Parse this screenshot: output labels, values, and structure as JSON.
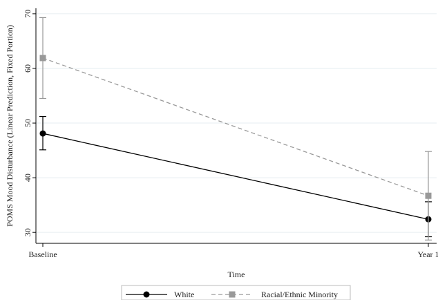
{
  "chart_data": {
    "type": "line",
    "xlabel": "Time",
    "ylabel": "POMS Mood Disturbance (Linear Prediction, Fixed Portion)",
    "categories": [
      "Baseline",
      "Year 1"
    ],
    "ylim": [
      28,
      71
    ],
    "yticks": [
      30,
      40,
      50,
      60,
      70
    ],
    "grid": true,
    "legend_position": "bottom",
    "series": [
      {
        "name": "White",
        "values": [
          48.1,
          32.4
        ],
        "ci_low": [
          45.1,
          29.2
        ],
        "ci_high": [
          51.2,
          35.6
        ],
        "color": "#000000",
        "marker": "circle",
        "line_style": "solid"
      },
      {
        "name": "Racial/Ethnic Minority",
        "values": [
          61.9,
          36.7
        ],
        "ci_low": [
          54.5,
          28.6
        ],
        "ci_high": [
          69.3,
          44.8
        ],
        "color": "#999999",
        "marker": "square",
        "line_style": "dashed"
      }
    ]
  }
}
